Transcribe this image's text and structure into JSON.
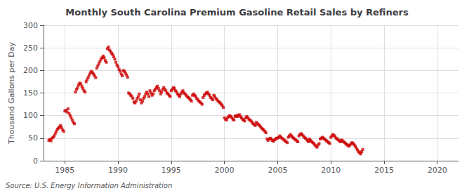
{
  "chart_data": {
    "type": "scatter",
    "title": "Monthly South Carolina Premium Gasoline Retail Sales by Refiners",
    "ylabel": "Thousand Gallons per Day",
    "source": "Source: U.S. Energy Information Administration",
    "color": "#cc0000",
    "marker": "square",
    "grid": true,
    "xlim": [
      1983,
      2022
    ],
    "ylim": [
      0,
      300
    ],
    "xticks": [
      1985,
      1990,
      1995,
      2000,
      2005,
      2010,
      2015,
      2020
    ],
    "yticks": [
      0,
      50,
      100,
      150,
      200,
      250,
      300
    ],
    "x": [
      1983.5,
      1983.6,
      1983.7,
      1983.8,
      1983.9,
      1984.0,
      1984.1,
      1984.2,
      1984.3,
      1984.4,
      1984.5,
      1984.6,
      1984.7,
      1984.8,
      1984.9,
      1985.0,
      1985.1,
      1985.2,
      1985.3,
      1985.4,
      1985.5,
      1985.6,
      1985.7,
      1985.8,
      1985.9,
      1986.0,
      1986.1,
      1986.2,
      1986.3,
      1986.4,
      1986.5,
      1986.6,
      1986.7,
      1986.8,
      1986.9,
      1987.0,
      1987.1,
      1987.2,
      1987.3,
      1987.4,
      1987.5,
      1987.6,
      1987.7,
      1987.8,
      1987.9,
      1988.0,
      1988.1,
      1988.2,
      1988.3,
      1988.4,
      1988.5,
      1988.6,
      1988.7,
      1988.8,
      1988.9,
      1989.0,
      1989.1,
      1989.2,
      1989.3,
      1989.4,
      1989.5,
      1989.6,
      1989.7,
      1989.8,
      1989.9,
      1990.0,
      1990.1,
      1990.2,
      1990.3,
      1990.4,
      1990.5,
      1990.6,
      1990.7,
      1990.8,
      1990.9,
      1991.0,
      1991.1,
      1991.2,
      1991.3,
      1991.4,
      1991.5,
      1991.6,
      1991.7,
      1991.8,
      1991.9,
      1992.0,
      1992.1,
      1992.2,
      1992.3,
      1992.4,
      1992.5,
      1992.6,
      1992.7,
      1992.8,
      1992.9,
      1993.0,
      1993.1,
      1993.2,
      1993.3,
      1993.4,
      1993.5,
      1993.6,
      1993.7,
      1993.8,
      1993.9,
      1994.0,
      1994.1,
      1994.2,
      1994.3,
      1994.4,
      1994.5,
      1994.6,
      1994.7,
      1994.8,
      1994.9,
      1995.0,
      1995.1,
      1995.2,
      1995.3,
      1995.4,
      1995.5,
      1995.6,
      1995.7,
      1995.8,
      1995.9,
      1996.0,
      1996.1,
      1996.2,
      1996.3,
      1996.4,
      1996.5,
      1996.6,
      1996.7,
      1996.8,
      1996.9,
      1997.0,
      1997.1,
      1997.2,
      1997.3,
      1997.4,
      1997.5,
      1997.6,
      1997.7,
      1997.8,
      1997.9,
      1998.0,
      1998.1,
      1998.2,
      1998.3,
      1998.4,
      1998.5,
      1998.6,
      1998.7,
      1998.8,
      1998.9,
      1999.0,
      1999.1,
      1999.2,
      1999.3,
      1999.4,
      1999.5,
      1999.6,
      1999.7,
      1999.8,
      1999.9,
      2000.0,
      2000.1,
      2000.2,
      2000.3,
      2000.4,
      2000.5,
      2000.6,
      2000.7,
      2000.8,
      2000.9,
      2001.0,
      2001.1,
      2001.2,
      2001.3,
      2001.4,
      2001.5,
      2001.6,
      2001.7,
      2001.8,
      2001.9,
      2002.0,
      2002.1,
      2002.2,
      2002.3,
      2002.4,
      2002.5,
      2002.6,
      2002.7,
      2002.8,
      2002.9,
      2003.0,
      2003.1,
      2003.2,
      2003.3,
      2003.4,
      2003.5,
      2003.6,
      2003.7,
      2003.8,
      2003.9,
      2004.0,
      2004.1,
      2004.2,
      2004.3,
      2004.4,
      2004.5,
      2004.6,
      2004.7,
      2004.8,
      2004.9,
      2005.0,
      2005.1,
      2005.2,
      2005.3,
      2005.4,
      2005.5,
      2005.6,
      2005.7,
      2005.8,
      2005.9,
      2006.0,
      2006.1,
      2006.2,
      2006.3,
      2006.4,
      2006.5,
      2006.6,
      2006.7,
      2006.8,
      2006.9,
      2007.0,
      2007.1,
      2007.2,
      2007.3,
      2007.4,
      2007.5,
      2007.6,
      2007.7,
      2007.8,
      2007.9,
      2008.0,
      2008.1,
      2008.2,
      2008.3,
      2008.4,
      2008.5,
      2008.6,
      2008.7,
      2008.8,
      2008.9,
      2009.0,
      2009.1,
      2009.2,
      2009.3,
      2009.4,
      2009.5,
      2009.6,
      2009.7,
      2009.8,
      2009.9,
      2010.0,
      2010.1,
      2010.2,
      2010.3,
      2010.4,
      2010.5,
      2010.6,
      2010.7,
      2010.8,
      2010.9,
      2011.0,
      2011.1,
      2011.2,
      2011.3,
      2011.4,
      2011.5,
      2011.6,
      2011.7,
      2011.8,
      2011.9,
      2012.0,
      2012.1,
      2012.2,
      2012.3,
      2012.4,
      2012.5,
      2012.6,
      2012.7,
      2012.8,
      2012.9,
      2013.0
    ],
    "values": [
      45,
      47,
      44,
      50,
      52,
      55,
      60,
      65,
      70,
      72,
      75,
      78,
      73,
      68,
      65,
      110,
      112,
      108,
      115,
      105,
      100,
      95,
      90,
      85,
      82,
      152,
      158,
      162,
      168,
      172,
      170,
      165,
      160,
      155,
      152,
      175,
      180,
      185,
      190,
      195,
      198,
      195,
      192,
      188,
      184,
      205,
      210,
      215,
      220,
      225,
      228,
      232,
      228,
      222,
      218,
      248,
      252,
      245,
      242,
      238,
      235,
      230,
      225,
      218,
      212,
      208,
      202,
      198,
      192,
      188,
      200,
      198,
      194,
      190,
      185,
      150,
      148,
      145,
      142,
      138,
      130,
      128,
      132,
      138,
      142,
      148,
      135,
      128,
      132,
      138,
      142,
      148,
      152,
      148,
      142,
      155,
      150,
      145,
      148,
      155,
      158,
      162,
      165,
      160,
      155,
      148,
      152,
      158,
      162,
      158,
      155,
      150,
      148,
      145,
      142,
      155,
      158,
      162,
      160,
      155,
      152,
      148,
      145,
      142,
      148,
      152,
      155,
      150,
      148,
      145,
      142,
      140,
      138,
      135,
      132,
      145,
      148,
      145,
      142,
      138,
      135,
      132,
      130,
      128,
      125,
      140,
      145,
      148,
      150,
      152,
      148,
      145,
      140,
      138,
      135,
      145,
      142,
      138,
      135,
      132,
      130,
      128,
      125,
      122,
      118,
      95,
      92,
      90,
      95,
      98,
      100,
      98,
      95,
      92,
      90,
      98,
      100,
      98,
      100,
      102,
      98,
      95,
      92,
      90,
      88,
      95,
      98,
      95,
      92,
      90,
      88,
      85,
      82,
      80,
      78,
      85,
      82,
      80,
      78,
      75,
      72,
      70,
      68,
      65,
      62,
      48,
      45,
      48,
      50,
      48,
      45,
      43,
      46,
      48,
      50,
      50,
      52,
      55,
      52,
      50,
      48,
      46,
      44,
      42,
      40,
      52,
      55,
      58,
      55,
      52,
      50,
      48,
      46,
      44,
      42,
      55,
      58,
      60,
      58,
      55,
      52,
      50,
      48,
      45,
      42,
      48,
      45,
      42,
      40,
      38,
      35,
      32,
      30,
      35,
      38,
      48,
      50,
      52,
      50,
      48,
      46,
      44,
      42,
      40,
      38,
      52,
      55,
      58,
      56,
      53,
      50,
      48,
      46,
      44,
      42,
      46,
      44,
      42,
      40,
      38,
      36,
      34,
      32,
      35,
      38,
      40,
      38,
      35,
      32,
      28,
      24,
      20,
      18,
      15,
      20,
      25
    ]
  }
}
